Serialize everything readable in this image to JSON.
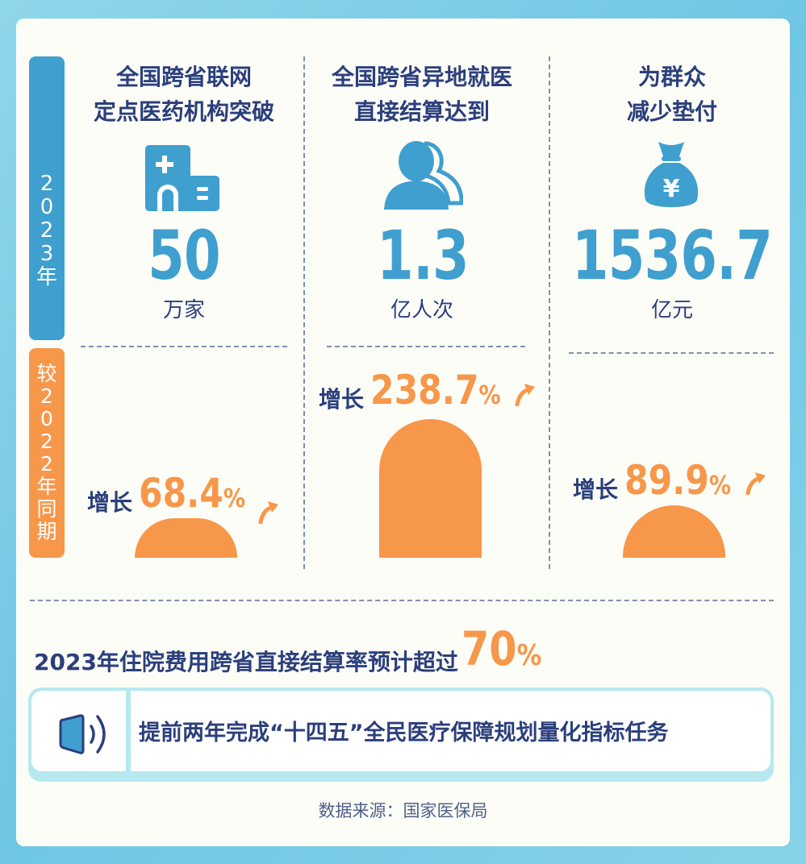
{
  "side_tabs": {
    "year": [
      "2",
      "0",
      "2",
      "3",
      "年"
    ],
    "compare": [
      "较",
      "2",
      "0",
      "2",
      "2",
      "年",
      "同",
      "期"
    ]
  },
  "colors": {
    "blue": "#3f9fcf",
    "orange": "#f7974a",
    "navy": "#2b3f7c",
    "cyan_border": "#b6e9ef"
  },
  "columns": [
    {
      "title_line1": "全国跨省联网",
      "title_line2": "定点医药机构突破",
      "icon": "hospital-icon",
      "value": "50",
      "unit": "万家",
      "growth_label": "增长",
      "growth_value": "68.4",
      "growth_unit": "%",
      "growth_pct": 68.4
    },
    {
      "title_line1": "全国跨省异地就医",
      "title_line2": "直接结算达到",
      "icon": "person-icon",
      "value": "1.3",
      "unit": "亿人次",
      "growth_label": "增长",
      "growth_value": "238.7",
      "growth_unit": "%",
      "growth_pct": 238.7
    },
    {
      "title_line1": "为群众",
      "title_line2": "减少垫付",
      "icon": "money-bag-icon",
      "value": "1536.7",
      "unit": "亿元",
      "growth_label": "增长",
      "growth_value": "89.9",
      "growth_unit": "%",
      "growth_pct": 89.9
    }
  ],
  "summary": {
    "text": "2023年住院费用跨省直接结算率预计超过",
    "value": "70",
    "unit": "%"
  },
  "notice": {
    "icon": "speaker-icon",
    "text": "提前两年完成“十四五”全民医疗保障规划量化指标任务"
  },
  "source": "数据来源：国家医保局"
}
